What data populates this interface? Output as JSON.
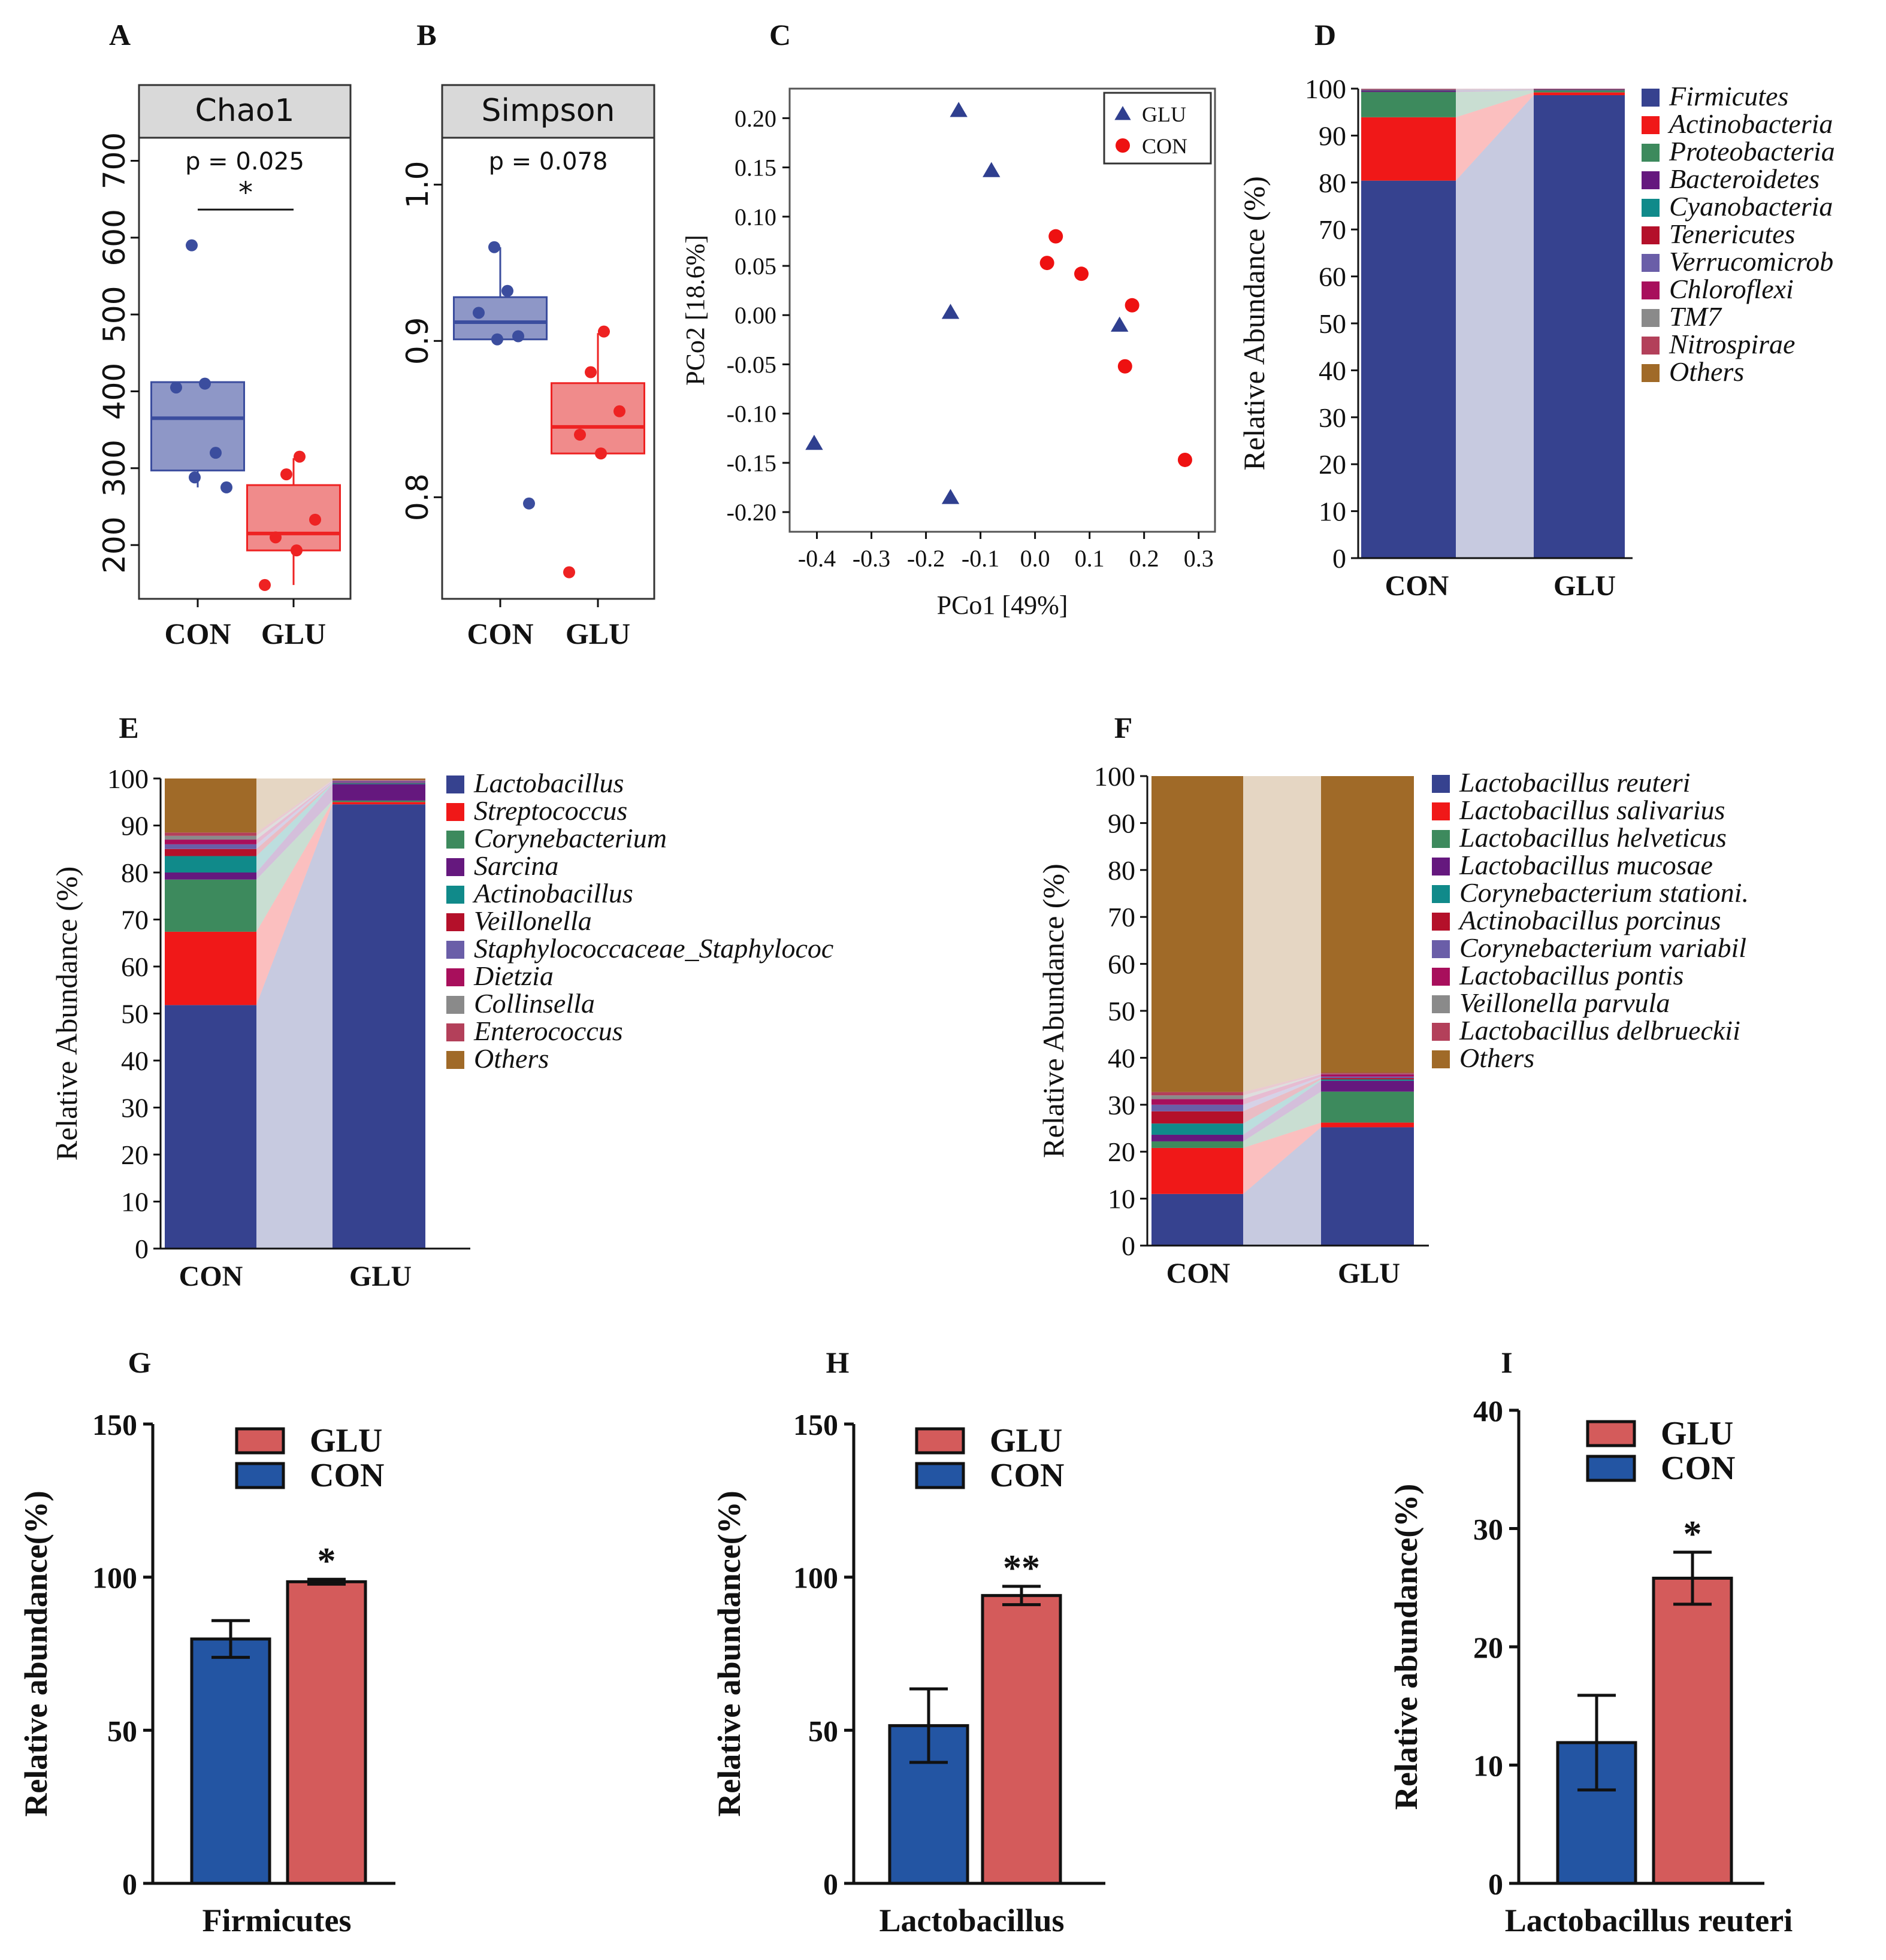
{
  "chart_data": [
    {
      "id": "A",
      "type": "boxplot",
      "panel_label": "A",
      "strip_title": "Chao1",
      "p_text": "p = 0.025",
      "sig": "*",
      "categories": [
        "CON",
        "GLU"
      ],
      "ylim": [
        130,
        730
      ],
      "yticks": [
        200,
        300,
        400,
        500,
        600,
        700
      ],
      "ytick_labels": [
        "200",
        "300",
        "400",
        "500",
        "600",
        "700"
      ],
      "groups": [
        {
          "name": "CON",
          "q1": 297,
          "median": 365,
          "q3": 412,
          "whisker_low": 275,
          "whisker_high": 412,
          "points": [
            590,
            410,
            405,
            320,
            288,
            275
          ],
          "color": "#3b4d9e",
          "fill": "#8e97c7"
        },
        {
          "name": "GLU",
          "q1": 193,
          "median": 215,
          "q3": 278,
          "whisker_low": 148,
          "whisker_high": 313,
          "points": [
            315,
            292,
            233,
            210,
            193,
            148
          ],
          "color": "#ee2222",
          "fill": "#f08b8b"
        }
      ]
    },
    {
      "id": "B",
      "type": "boxplot",
      "panel_label": "B",
      "strip_title": "Simpson",
      "p_text": "p = 0.078",
      "sig": "",
      "categories": [
        "CON",
        "GLU"
      ],
      "ylim": [
        0.735,
        1.03
      ],
      "yticks": [
        0.8,
        0.9,
        1.0
      ],
      "ytick_labels": [
        "0.8",
        "0.9",
        "1.0"
      ],
      "groups": [
        {
          "name": "CON",
          "q1": 0.901,
          "median": 0.912,
          "q3": 0.928,
          "whisker_low": 0.901,
          "whisker_high": 0.96,
          "points": [
            0.96,
            0.932,
            0.918,
            0.903,
            0.901,
            0.796
          ],
          "color": "#3b4d9e",
          "fill": "#8e97c7"
        },
        {
          "name": "GLU",
          "q1": 0.828,
          "median": 0.845,
          "q3": 0.873,
          "whisker_low": 0.828,
          "whisker_high": 0.905,
          "points": [
            0.906,
            0.88,
            0.855,
            0.84,
            0.828,
            0.752
          ],
          "color": "#ee2222",
          "fill": "#f08b8b"
        }
      ]
    },
    {
      "id": "C",
      "type": "scatter",
      "panel_label": "C",
      "xlabel": "PCo1 [49%]",
      "ylabel": "PCo2 [18.6%]",
      "xlim": [
        -0.45,
        0.33
      ],
      "ylim": [
        -0.22,
        0.23
      ],
      "xticks": [
        -0.4,
        -0.3,
        -0.2,
        -0.1,
        0.0,
        0.1,
        0.2,
        0.3
      ],
      "xtick_labels": [
        "-0.4",
        "-0.3",
        "-0.2",
        "-0.1",
        "0.0",
        "0.1",
        "0.2",
        "0.3"
      ],
      "yticks": [
        0.2,
        0.15,
        0.1,
        0.05,
        0.0,
        -0.05,
        -0.1,
        -0.15,
        -0.2
      ],
      "ytick_labels": [
        "0.20",
        "0.15",
        "0.10",
        "0.05",
        "0.00",
        "-0.05",
        "-0.10",
        "-0.15",
        "-0.20"
      ],
      "legend": [
        {
          "name": "GLU",
          "marker": "triangle",
          "color": "#2f3f8f"
        },
        {
          "name": "CON",
          "marker": "circle",
          "color": "#ee1111"
        }
      ],
      "series": [
        {
          "name": "GLU",
          "marker": "triangle",
          "color": "#2f3f8f",
          "points": [
            [
              -0.14,
              0.208
            ],
            [
              -0.08,
              0.147
            ],
            [
              -0.155,
              0.003
            ],
            [
              -0.405,
              -0.13
            ],
            [
              -0.155,
              -0.185
            ],
            [
              0.155,
              -0.01
            ]
          ]
        },
        {
          "name": "CON",
          "marker": "circle",
          "color": "#ee1111",
          "points": [
            [
              0.038,
              0.08
            ],
            [
              0.022,
              0.053
            ],
            [
              0.085,
              0.042
            ],
            [
              0.178,
              0.01
            ],
            [
              0.165,
              -0.052
            ],
            [
              0.275,
              -0.147
            ]
          ]
        }
      ]
    },
    {
      "id": "D",
      "type": "stacked_bar",
      "panel_label": "D",
      "ylabel": "Relative Abundance (%)",
      "categories": [
        "CON",
        "GLU"
      ],
      "yticks": [
        0,
        10,
        20,
        30,
        40,
        50,
        60,
        70,
        80,
        90,
        100
      ],
      "ytick_labels": [
        "0",
        "10",
        "20",
        "30",
        "40",
        "50",
        "60",
        "70",
        "80",
        "90",
        "100"
      ],
      "ylim": [
        0,
        100
      ],
      "series": [
        {
          "name": "Firmicutes",
          "color": "#36428f",
          "values": [
            80.4,
            98.6
          ]
        },
        {
          "name": "Actinobacteria",
          "color": "#f01818",
          "values": [
            13.5,
            0.6
          ]
        },
        {
          "name": "Proteobacteria",
          "color": "#3d8a5d",
          "values": [
            5.4,
            0.4
          ]
        },
        {
          "name": "Bacteroidetes",
          "color": "#65187e",
          "values": [
            0.3,
            0.1
          ]
        },
        {
          "name": "Cyanobacteria",
          "color": "#108a8a",
          "values": [
            0.1,
            0.1
          ]
        },
        {
          "name": "Tenericutes",
          "color": "#b4102a",
          "values": [
            0.1,
            0.1
          ]
        },
        {
          "name": "Verrucomicrob",
          "color": "#6a5ea8",
          "values": [
            0.05,
            0.05
          ]
        },
        {
          "name": "Chloroflexi",
          "color": "#a80f5c",
          "values": [
            0.05,
            0.05
          ]
        },
        {
          "name": "TM7",
          "color": "#8a8a8a",
          "values": [
            0.05,
            0.0
          ]
        },
        {
          "name": "Nitrospirae",
          "color": "#b3405a",
          "values": [
            0.05,
            0.0
          ]
        },
        {
          "name": "Others",
          "color": "#a06a28",
          "values": [
            0.0,
            0.0
          ]
        }
      ]
    },
    {
      "id": "E",
      "type": "stacked_bar",
      "panel_label": "E",
      "ylabel": "Relative Abundance (%)",
      "categories": [
        "CON",
        "GLU"
      ],
      "yticks": [
        0,
        10,
        20,
        30,
        40,
        50,
        60,
        70,
        80,
        90,
        100
      ],
      "ytick_labels": [
        "0",
        "10",
        "20",
        "30",
        "40",
        "50",
        "60",
        "70",
        "80",
        "90",
        "100"
      ],
      "ylim": [
        0,
        100
      ],
      "series": [
        {
          "name": "Lactobacillus",
          "color": "#36428f",
          "values": [
            51.8,
            94.5
          ]
        },
        {
          "name": "Streptococcus",
          "color": "#f01818",
          "values": [
            15.6,
            0.5
          ]
        },
        {
          "name": "Corynebacterium",
          "color": "#3d8a5d",
          "values": [
            11.1,
            0.3
          ]
        },
        {
          "name": "Sarcina",
          "color": "#65187e",
          "values": [
            1.5,
            3.5
          ]
        },
        {
          "name": "Actinobacillus",
          "color": "#108a8a",
          "values": [
            3.5,
            0.2
          ]
        },
        {
          "name": "Veillonella",
          "color": "#b4102a",
          "values": [
            1.5,
            0.1
          ]
        },
        {
          "name": "Staphylococcaceae_Staphylococ",
          "color": "#6a5ea8",
          "values": [
            1.0,
            0.3
          ]
        },
        {
          "name": "Dietzia",
          "color": "#a80f5c",
          "values": [
            1.0,
            0.1
          ]
        },
        {
          "name": "Collinsella",
          "color": "#8a8a8a",
          "values": [
            0.8,
            0.1
          ]
        },
        {
          "name": "Enterococcus",
          "color": "#b3405a",
          "values": [
            0.7,
            0.1
          ]
        },
        {
          "name": "Others",
          "color": "#a06a28",
          "values": [
            11.5,
            0.3
          ]
        }
      ]
    },
    {
      "id": "F",
      "type": "stacked_bar",
      "panel_label": "F",
      "ylabel": "Relative Abundance (%)",
      "categories": [
        "CON",
        "GLU"
      ],
      "yticks": [
        0,
        10,
        20,
        30,
        40,
        50,
        60,
        70,
        80,
        90,
        100
      ],
      "ytick_labels": [
        "0",
        "10",
        "20",
        "30",
        "40",
        "50",
        "60",
        "70",
        "80",
        "90",
        "100"
      ],
      "ylim": [
        0,
        100
      ],
      "series": [
        {
          "name": "Lactobacillus reuteri",
          "color": "#36428f",
          "values": [
            11.0,
            25.2
          ]
        },
        {
          "name": "Lactobacillus salivarius",
          "color": "#f01818",
          "values": [
            9.8,
            1.0
          ]
        },
        {
          "name": "Lactobacillus helveticus",
          "color": "#3d8a5d",
          "values": [
            1.4,
            6.6
          ]
        },
        {
          "name": "Lactobacillus mucosae",
          "color": "#65187e",
          "values": [
            1.4,
            2.3
          ]
        },
        {
          "name": "Corynebacterium stationi.",
          "color": "#108a8a",
          "values": [
            2.4,
            0.3
          ]
        },
        {
          "name": "Actinobacillus porcinus",
          "color": "#b4102a",
          "values": [
            2.6,
            0.3
          ]
        },
        {
          "name": "Corynebacterium variabil",
          "color": "#6a5ea8",
          "values": [
            1.4,
            0.3
          ]
        },
        {
          "name": "Lactobacillus pontis",
          "color": "#a80f5c",
          "values": [
            1.2,
            0.5
          ]
        },
        {
          "name": "Veillonella parvula",
          "color": "#8a8a8a",
          "values": [
            0.8,
            0.1
          ]
        },
        {
          "name": "Lactobacillus delbrueckii",
          "color": "#b3405a",
          "values": [
            0.7,
            0.2
          ]
        },
        {
          "name": "Others",
          "color": "#a06a28",
          "values": [
            67.3,
            63.2
          ]
        }
      ]
    },
    {
      "id": "G",
      "type": "bar",
      "panel_label": "G",
      "xlabel": "Firmicutes",
      "ylabel": "Relative abundance(%)",
      "ylim": [
        0,
        150
      ],
      "yticks": [
        0,
        50,
        100,
        150
      ],
      "ytick_labels": [
        "0",
        "50",
        "100",
        "150"
      ],
      "legend": [
        {
          "name": "GLU",
          "color": "#d45b5b"
        },
        {
          "name": "CON",
          "color": "#2355a3"
        }
      ],
      "bars": [
        {
          "name": "CON",
          "value": 79.8,
          "error": 6.0,
          "color": "#2355a3"
        },
        {
          "name": "GLU",
          "value": 98.5,
          "error": 0.8,
          "color": "#d45b5b",
          "sig": "*"
        }
      ]
    },
    {
      "id": "H",
      "type": "bar",
      "panel_label": "H",
      "xlabel": "Lactobacillus",
      "ylabel": "Relative abundance(%)",
      "ylim": [
        0,
        150
      ],
      "yticks": [
        0,
        50,
        100,
        150
      ],
      "ytick_labels": [
        "0",
        "50",
        "100",
        "150"
      ],
      "legend": [
        {
          "name": "GLU",
          "color": "#d45b5b"
        },
        {
          "name": "CON",
          "color": "#2355a3"
        }
      ],
      "bars": [
        {
          "name": "CON",
          "value": 51.5,
          "error": 12.0,
          "color": "#2355a3"
        },
        {
          "name": "GLU",
          "value": 94.0,
          "error": 3.0,
          "color": "#d45b5b",
          "sig": "**"
        }
      ]
    },
    {
      "id": "I",
      "type": "bar",
      "panel_label": "I",
      "xlabel": "Lactobacillus reuteri",
      "ylabel": "Relative abundance(%)",
      "ylim": [
        0,
        40
      ],
      "yticks": [
        0,
        10,
        20,
        30,
        40
      ],
      "ytick_labels": [
        "0",
        "10",
        "20",
        "30",
        "40"
      ],
      "legend": [
        {
          "name": "GLU",
          "color": "#d45b5b"
        },
        {
          "name": "CON",
          "color": "#2355a3"
        }
      ],
      "bars": [
        {
          "name": "CON",
          "value": 11.9,
          "error": 4.0,
          "color": "#2355a3"
        },
        {
          "name": "GLU",
          "value": 25.8,
          "error": 2.2,
          "color": "#d45b5b",
          "sig": "*"
        }
      ]
    }
  ]
}
